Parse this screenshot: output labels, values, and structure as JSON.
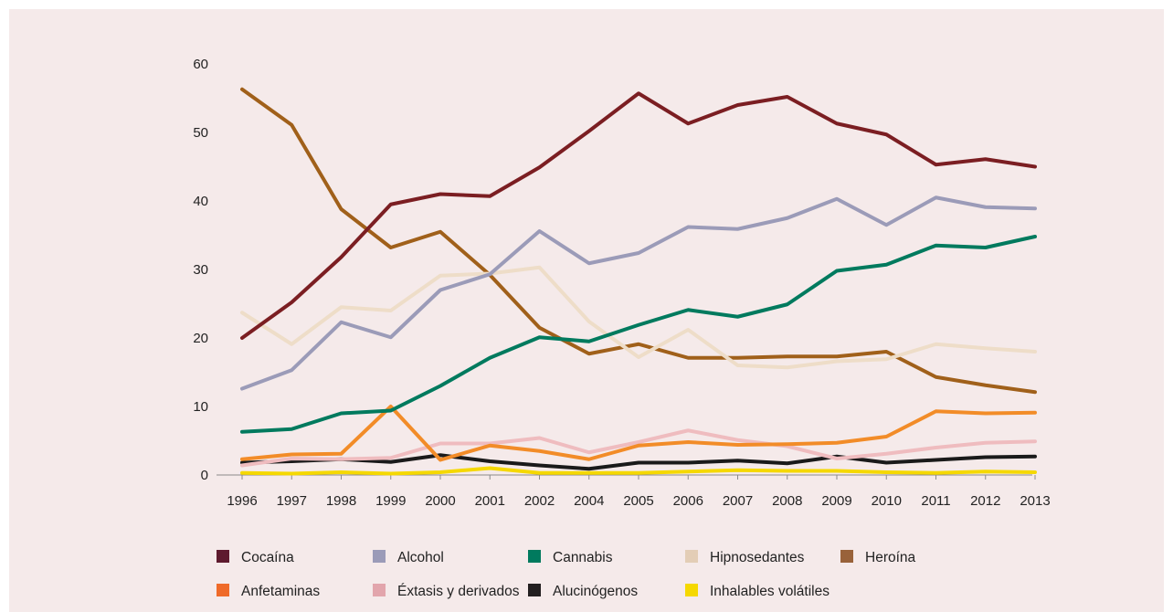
{
  "chart_data": {
    "type": "line",
    "title": "",
    "xlabel": "",
    "ylabel": "",
    "ylim": [
      0,
      60
    ],
    "yticks": [
      0,
      10,
      20,
      30,
      40,
      50,
      60
    ],
    "grid": false,
    "legend_position": "bottom",
    "categories": [
      "1996",
      "1997",
      "1998",
      "1999",
      "2000",
      "2001",
      "2002",
      "2004",
      "2005",
      "2006",
      "2007",
      "2008",
      "2009",
      "2010",
      "2011",
      "2012",
      "2013"
    ],
    "series": [
      {
        "name": "Cocaína",
        "color": "#7b1e22",
        "legend_color": "#5e1a2e",
        "values": [
          20.0,
          25.2,
          31.8,
          39.5,
          41.0,
          40.7,
          44.9,
          50.2,
          55.7,
          51.3,
          54.0,
          55.2,
          51.3,
          49.7,
          45.3,
          46.1,
          45.0
        ]
      },
      {
        "name": "Alcohol",
        "color": "#9b9bb8",
        "legend_color": "#9b9bb8",
        "values": [
          12.6,
          15.3,
          22.3,
          20.1,
          27.0,
          29.3,
          35.6,
          30.9,
          32.4,
          36.2,
          35.9,
          37.5,
          40.3,
          36.5,
          40.5,
          39.1,
          38.9
        ]
      },
      {
        "name": "Cannabis",
        "color": "#007a5e",
        "legend_color": "#007a5e",
        "values": [
          6.3,
          6.7,
          9.0,
          9.4,
          13.0,
          17.1,
          20.1,
          19.5,
          21.9,
          24.1,
          23.1,
          24.9,
          29.8,
          30.7,
          33.5,
          33.2,
          34.8
        ]
      },
      {
        "name": "Hipnosedantes",
        "color": "#eeddc8",
        "legend_color": "#e3cdb6",
        "values": [
          23.7,
          19.1,
          24.5,
          24.0,
          29.1,
          29.4,
          30.3,
          22.4,
          17.2,
          21.2,
          16.0,
          15.7,
          16.6,
          16.9,
          19.1,
          18.5,
          18.0
        ]
      },
      {
        "name": "Heroína",
        "color": "#a0601a",
        "legend_color": "#99623a",
        "values": [
          56.3,
          51.1,
          38.8,
          33.2,
          35.5,
          29.2,
          21.5,
          17.7,
          19.1,
          17.1,
          17.1,
          17.3,
          17.3,
          18.0,
          14.3,
          13.1,
          12.1
        ]
      },
      {
        "name": "Anfetaminas",
        "color": "#f28c28",
        "legend_color": "#ef6a29",
        "values": [
          2.3,
          3.0,
          3.1,
          10.0,
          2.2,
          4.3,
          3.5,
          2.3,
          4.3,
          4.8,
          4.4,
          4.5,
          4.7,
          5.6,
          9.3,
          9.0,
          9.1
        ]
      },
      {
        "name": "Éxtasis y derivados",
        "color": "#efbcbf",
        "legend_color": "#e2a5ac",
        "values": [
          1.4,
          2.4,
          2.3,
          2.5,
          4.6,
          4.6,
          5.4,
          3.3,
          4.8,
          6.5,
          5.1,
          4.2,
          2.4,
          3.1,
          4.0,
          4.7,
          4.9
        ]
      },
      {
        "name": "Alucinógenos",
        "color": "#1a1a1a",
        "legend_color": "#231f20",
        "values": [
          1.8,
          2.0,
          2.3,
          1.9,
          2.9,
          2.0,
          1.4,
          0.9,
          1.8,
          1.8,
          2.1,
          1.7,
          2.7,
          1.8,
          2.2,
          2.6,
          2.7
        ]
      },
      {
        "name": "Inhalables volátiles",
        "color": "#f5d800",
        "legend_color": "#f5d800",
        "values": [
          0.3,
          0.2,
          0.4,
          0.2,
          0.4,
          1.0,
          0.3,
          0.3,
          0.3,
          0.5,
          0.7,
          0.6,
          0.6,
          0.4,
          0.3,
          0.5,
          0.4
        ]
      }
    ]
  }
}
